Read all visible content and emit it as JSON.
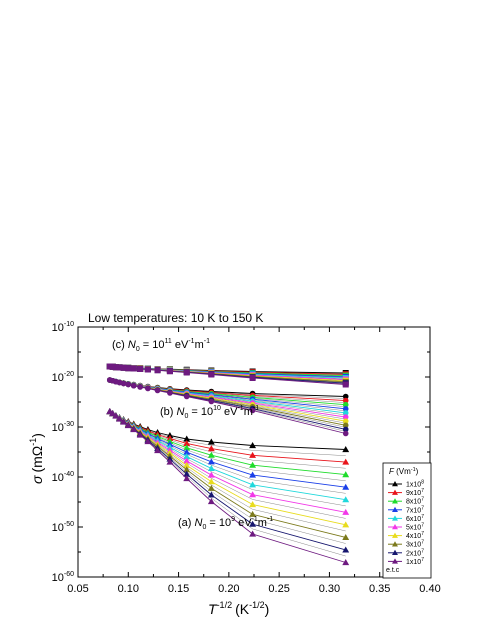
{
  "chart_data": {
    "type": "scatter",
    "title": "Low temperatures: 10 K to 150 K",
    "xlabel": {
      "symbol": "T",
      "exp": "-1/2",
      "unit": "(K",
      "unit_exp": "-1/2",
      "close": ")"
    },
    "ylabel": {
      "symbol": "σ",
      "unit": "(mΩ",
      "unit_exp": "-1",
      "close": ")"
    },
    "x_scale": "linear",
    "y_scale": "log",
    "xlim": [
      0.05,
      0.4
    ],
    "ylim": [
      1e-60,
      1e-10
    ],
    "x_ticks": [
      "0.05",
      "0.10",
      "0.15",
      "0.20",
      "0.25",
      "0.30",
      "0.35",
      "0.40"
    ],
    "y_ticks": [
      {
        "base": "10",
        "exp": "-60",
        "value": -60
      },
      {
        "base": "10",
        "exp": "-50",
        "value": -50
      },
      {
        "base": "10",
        "exp": "-40",
        "value": -40
      },
      {
        "base": "10",
        "exp": "-30",
        "value": -30
      },
      {
        "base": "10",
        "exp": "-20",
        "value": -20
      },
      {
        "base": "10",
        "exp": "-10",
        "value": -10
      }
    ],
    "x": [
      0.0816,
      0.0845,
      0.0877,
      0.0913,
      0.0953,
      0.1,
      0.1054,
      0.1118,
      0.1195,
      0.1291,
      0.1414,
      0.1581,
      0.1826,
      0.2236,
      0.3162
    ],
    "groups": [
      {
        "label": {
          "prefix": "(c) ",
          "n": "N",
          "sub": "0",
          "mid": " = 10",
          "exp": "11",
          "unit": " eV",
          "u1": "-1",
          "m": "m",
          "u2": "-1"
        },
        "marker": "square",
        "log10_sigma_at_1e8": [
          -17.9,
          -17.95,
          -18.0,
          -18.05,
          -18.1,
          -18.15,
          -18.2,
          -18.25,
          -18.3,
          -18.4,
          -18.45,
          -18.55,
          -18.7,
          -18.9,
          -19.2
        ],
        "log10_sigma_at_1e7": [
          -17.9,
          -17.95,
          -18.05,
          -18.1,
          -18.15,
          -18.25,
          -18.3,
          -18.4,
          -18.5,
          -18.65,
          -18.85,
          -19.1,
          -19.5,
          -20.2,
          -21.5
        ]
      },
      {
        "label": {
          "prefix": "(b) ",
          "n": "N",
          "sub": "0",
          "mid": " = 10",
          "exp": "10",
          "unit": " eV",
          "u1": "-1",
          "m": "m",
          "u2": "-1"
        },
        "marker": "circle",
        "log10_sigma_at_1e8": [
          -20.6,
          -20.75,
          -20.9,
          -21.05,
          -21.2,
          -21.35,
          -21.5,
          -21.7,
          -21.9,
          -22.1,
          -22.35,
          -22.6,
          -22.9,
          -23.3,
          -23.9
        ],
        "log10_sigma_at_1e7": [
          -20.6,
          -20.75,
          -20.95,
          -21.1,
          -21.3,
          -21.5,
          -21.75,
          -22.0,
          -22.3,
          -22.7,
          -23.2,
          -23.9,
          -24.9,
          -26.7,
          -31.3
        ]
      },
      {
        "label": {
          "prefix": "(a) ",
          "n": "N",
          "sub": "0",
          "mid": " = 10",
          "exp": "9",
          "unit": " eV",
          "u1": "-1",
          "m": "m",
          "u2": "-1"
        },
        "marker": "triangle",
        "log10_sigma_at_1e8": [
          -26.9,
          -27.3,
          -27.7,
          -28.1,
          -28.5,
          -28.9,
          -29.4,
          -29.9,
          -30.5,
          -31.1,
          -31.7,
          -32.4,
          -33.0,
          -33.7,
          -34.5
        ],
        "log10_sigma_at_1e7": [
          -26.9,
          -27.3,
          -27.8,
          -28.4,
          -29.0,
          -29.7,
          -30.5,
          -31.6,
          -32.9,
          -34.7,
          -37.0,
          -40.3,
          -44.9,
          -51.4,
          -57.1
        ]
      }
    ],
    "legend": {
      "title": {
        "sym": "F",
        "unit": " (Vm",
        "exp": "-1",
        "close": ")"
      },
      "placement": "right",
      "entries": [
        {
          "mant": "1x10",
          "exp": "8",
          "color": "#000000",
          "fraction": 0.0
        },
        {
          "mant": "9x10",
          "exp": "7",
          "color": "#e8141b",
          "fraction": 0.1111
        },
        {
          "mant": "8x10",
          "exp": "7",
          "color": "#1fdc2c",
          "fraction": 0.2222
        },
        {
          "mant": "7x10",
          "exp": "7",
          "color": "#1a3fe8",
          "fraction": 0.3333
        },
        {
          "mant": "6x10",
          "exp": "7",
          "color": "#20d8dc",
          "fraction": 0.4444
        },
        {
          "mant": "5x10",
          "exp": "7",
          "color": "#f238e8",
          "fraction": 0.5556
        },
        {
          "mant": "4x10",
          "exp": "7",
          "color": "#e8dc1e",
          "fraction": 0.6667
        },
        {
          "mant": "3x10",
          "exp": "7",
          "color": "#7c7a1c",
          "fraction": 0.7778
        },
        {
          "mant": "2x10",
          "exp": "7",
          "color": "#16166e",
          "fraction": 0.8889
        },
        {
          "mant": "1x10",
          "exp": "7",
          "color": "#6e1a80",
          "fraction": 1.0
        }
      ],
      "footer": "e.t.c",
      "intermediate_color": "#8a8a8a"
    }
  }
}
